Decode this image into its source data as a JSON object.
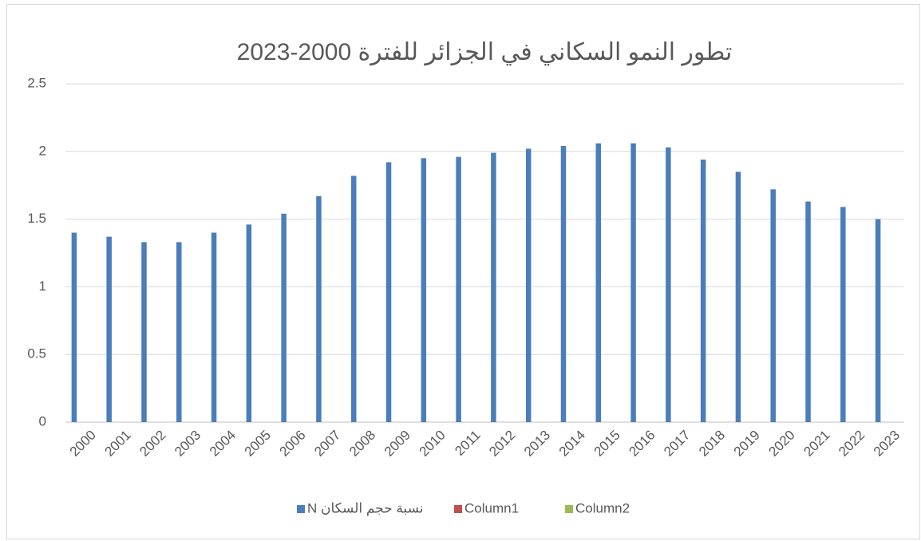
{
  "chart_data": {
    "type": "bar",
    "title": "تطور النمو السكاني في الجزائر للفترة 2000-2023",
    "categories": [
      "2000",
      "2001",
      "2002",
      "2003",
      "2004",
      "2005",
      "2006",
      "2007",
      "2008",
      "2009",
      "2010",
      "2011",
      "2012",
      "2013",
      "2014",
      "2015",
      "2016",
      "2017",
      "2018",
      "2019",
      "2020",
      "2021",
      "2022",
      "2023"
    ],
    "series": [
      {
        "name": "N نسبة حجم السكان",
        "color": "#4a7ebb",
        "values": [
          1.4,
          1.37,
          1.33,
          1.33,
          1.4,
          1.46,
          1.54,
          1.67,
          1.82,
          1.92,
          1.95,
          1.96,
          1.99,
          2.02,
          2.04,
          2.06,
          2.06,
          2.03,
          1.94,
          1.85,
          1.72,
          1.63,
          1.59,
          1.5
        ]
      },
      {
        "name": "Column1",
        "color": "#c0504d",
        "values": [
          null,
          null,
          null,
          null,
          null,
          null,
          null,
          null,
          null,
          null,
          null,
          null,
          null,
          null,
          null,
          null,
          null,
          null,
          null,
          null,
          null,
          null,
          null,
          null
        ]
      },
      {
        "name": "Column2",
        "color": "#9bbb59",
        "values": [
          null,
          null,
          null,
          null,
          null,
          null,
          null,
          null,
          null,
          null,
          null,
          null,
          null,
          null,
          null,
          null,
          null,
          null,
          null,
          null,
          null,
          null,
          null,
          null
        ]
      }
    ],
    "ylim": [
      0,
      2.5
    ],
    "yticks": [
      0,
      0.5,
      1,
      1.5,
      2,
      2.5
    ],
    "grid": true,
    "legend": "bottom"
  }
}
